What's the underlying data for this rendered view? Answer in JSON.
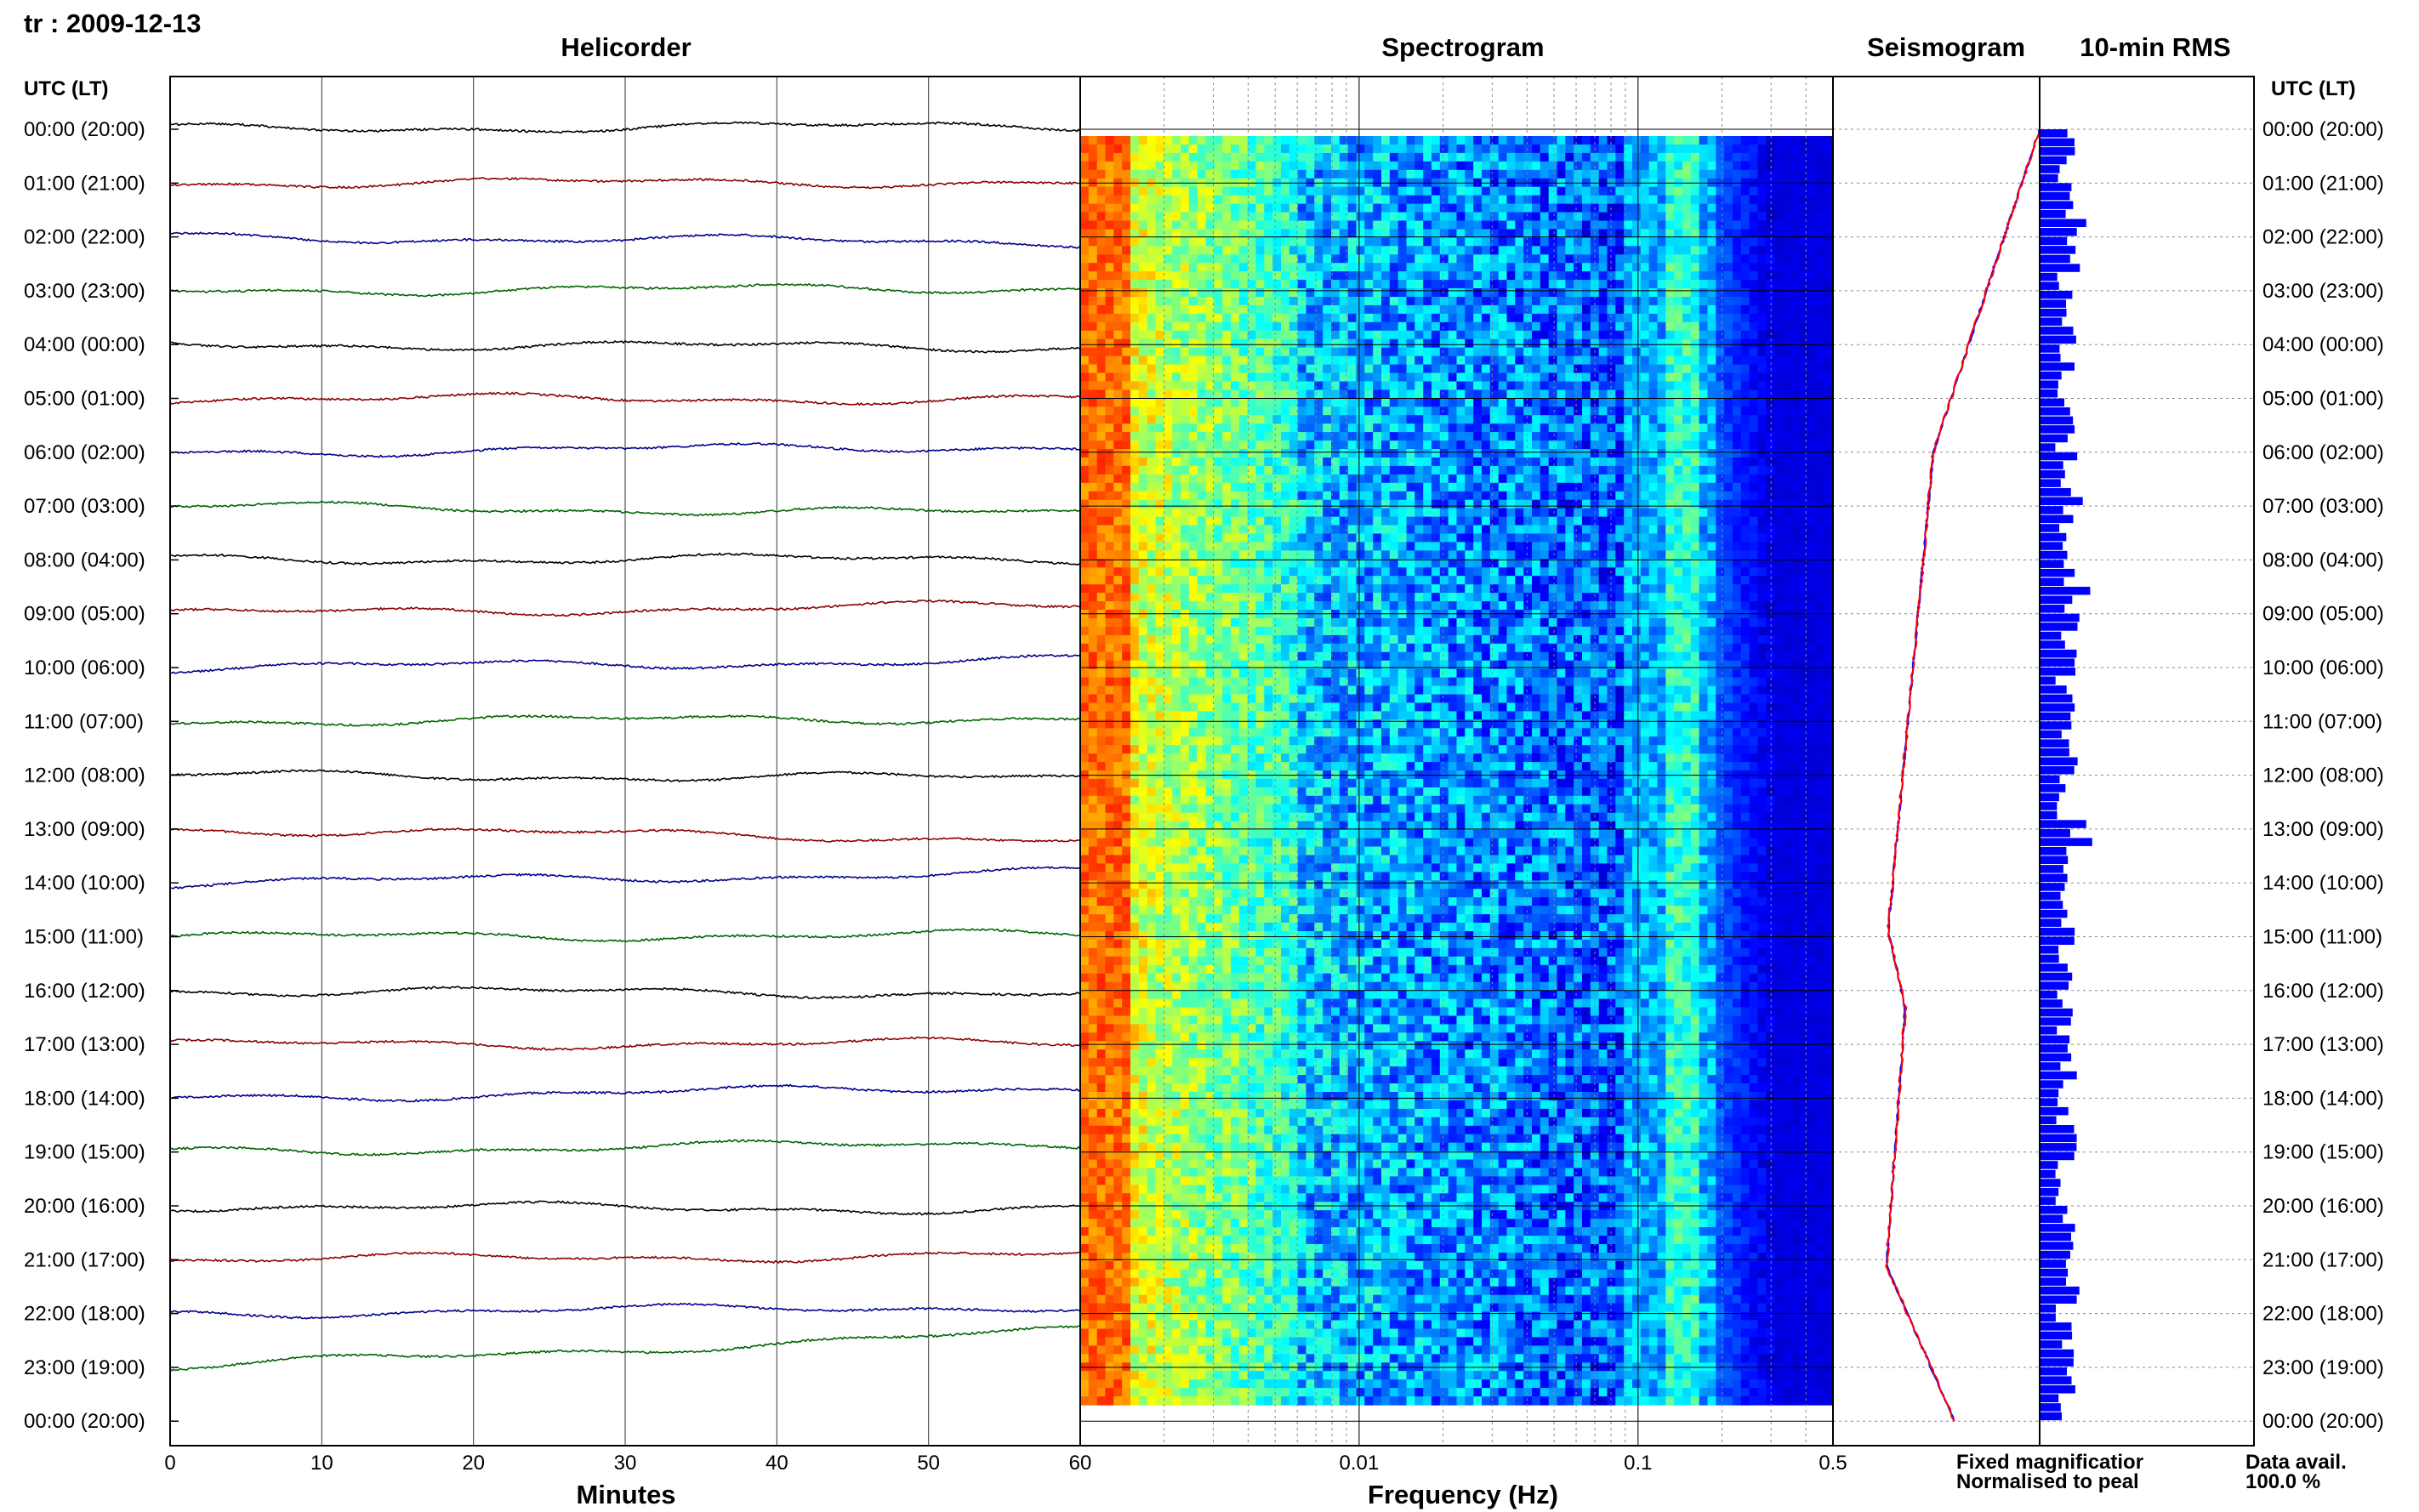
{
  "header": {
    "station": "tr : 2009-12-13"
  },
  "panels": {
    "helicorder": "Helicorder",
    "spectrogram": "Spectrogram",
    "seismogram": "Seismogram",
    "rms": "10-min RMS"
  },
  "axis": {
    "time_label_left": "UTC (LT)",
    "time_label_right": "UTC (LT)",
    "minutes_label": "Minutes",
    "frequency_label": "Frequency (Hz)"
  },
  "legend": {
    "fixed": "Fixed magnificatior",
    "normalised": "Normalised to peal",
    "fixed_color": "#1010ff",
    "normalised_color": "#ff0000"
  },
  "data_availability": {
    "label": "Data avail.",
    "value": "100.0 %"
  },
  "chart_data": [
    {
      "type": "line",
      "panel": "helicorder",
      "xlabel": "Minutes",
      "xlim": [
        0,
        60
      ],
      "x_ticks": [
        "0",
        "10",
        "20",
        "30",
        "40",
        "50",
        "60"
      ],
      "hour_labels": [
        "00:00 (20:00)",
        "01:00 (21:00)",
        "02:00 (22:00)",
        "03:00 (23:00)",
        "04:00 (00:00)",
        "05:00 (01:00)",
        "06:00 (02:00)",
        "07:00 (03:00)",
        "08:00 (04:00)",
        "09:00 (05:00)",
        "10:00 (06:00)",
        "11:00 (07:00)",
        "12:00 (08:00)",
        "13:00 (09:00)",
        "14:00 (10:00)",
        "15:00 (11:00)",
        "16:00 (12:00)",
        "17:00 (13:00)",
        "18:00 (14:00)",
        "19:00 (15:00)",
        "20:00 (16:00)",
        "21:00 (17:00)",
        "22:00 (18:00)",
        "23:00 (19:00)",
        "00:00 (20:00)"
      ],
      "trace_colors": [
        "#000000",
        "#8b0000",
        "#00008b",
        "#006400"
      ],
      "grid": true
    },
    {
      "type": "heatmap",
      "panel": "spectrogram",
      "xlabel": "Frequency (Hz)",
      "x_scale": "log",
      "xlim": [
        0.001,
        0.5
      ],
      "x_ticks": [
        "0.01",
        "0.1",
        "0.5"
      ]
    },
    {
      "type": "line",
      "panel": "seismogram",
      "series": [
        {
          "name": "Fixed magnificatior",
          "color": "#1010ff"
        },
        {
          "name": "Normalised to peal",
          "color": "#ff0000"
        }
      ]
    },
    {
      "type": "bar",
      "panel": "rms",
      "bar_color": "#0000ff",
      "grid": true
    }
  ]
}
